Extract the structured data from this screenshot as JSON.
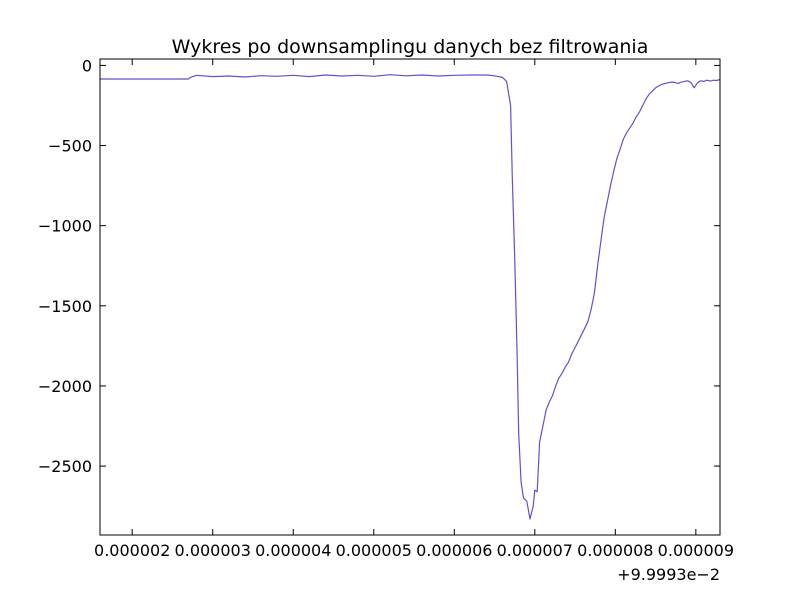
{
  "chart_data": {
    "type": "line",
    "title": "Wykres po downsamplingu danych bez filtrowania",
    "xlabel": "",
    "ylabel": "",
    "x_offset_label": "+9.9993e−2",
    "xlim": [
      1.6e-06,
      9.3e-06
    ],
    "ylim": [
      -2930,
      40
    ],
    "grid": false,
    "x_ticks": [
      {
        "value": 2e-06,
        "label": "0.000002"
      },
      {
        "value": 3e-06,
        "label": "0.000003"
      },
      {
        "value": 4e-06,
        "label": "0.000004"
      },
      {
        "value": 5e-06,
        "label": "0.000005"
      },
      {
        "value": 6e-06,
        "label": "0.000006"
      },
      {
        "value": 7e-06,
        "label": "0.000007"
      },
      {
        "value": 8e-06,
        "label": "0.000008"
      },
      {
        "value": 9e-06,
        "label": "0.000009"
      }
    ],
    "y_ticks": [
      {
        "value": 0,
        "label": "0"
      },
      {
        "value": -500,
        "label": "−500"
      },
      {
        "value": -1000,
        "label": "−1000"
      },
      {
        "value": -1500,
        "label": "−1500"
      },
      {
        "value": -2000,
        "label": "−2000"
      },
      {
        "value": -2500,
        "label": "−2500"
      }
    ],
    "series": [
      {
        "color": "#5b56c9",
        "x": [
          1.6e-06,
          2.7e-06,
          2.72e-06,
          2.8e-06,
          3e-06,
          3.2e-06,
          3.4e-06,
          3.6e-06,
          3.8e-06,
          4e-06,
          4.2e-06,
          4.4e-06,
          4.6e-06,
          4.8e-06,
          5e-06,
          5.2e-06,
          5.4e-06,
          5.6e-06,
          5.8e-06,
          6e-06,
          6.2e-06,
          6.4e-06,
          6.5e-06,
          6.6e-06,
          6.65e-06,
          6.7e-06,
          6.72e-06,
          6.75e-06,
          6.78e-06,
          6.8e-06,
          6.83e-06,
          6.86e-06,
          6.9e-06,
          6.94e-06,
          6.98e-06,
          7e-06,
          7.03e-06,
          7.06e-06,
          7.1e-06,
          7.14e-06,
          7.18e-06,
          7.22e-06,
          7.26e-06,
          7.3e-06,
          7.34e-06,
          7.38e-06,
          7.42e-06,
          7.46e-06,
          7.5e-06,
          7.54e-06,
          7.58e-06,
          7.62e-06,
          7.66e-06,
          7.7e-06,
          7.74e-06,
          7.78e-06,
          7.82e-06,
          7.86e-06,
          7.9e-06,
          7.94e-06,
          7.98e-06,
          8.02e-06,
          8.06e-06,
          8.1e-06,
          8.14e-06,
          8.18e-06,
          8.22e-06,
          8.26e-06,
          8.3e-06,
          8.34e-06,
          8.38e-06,
          8.42e-06,
          8.46e-06,
          8.5e-06,
          8.54e-06,
          8.58e-06,
          8.62e-06,
          8.66e-06,
          8.7e-06,
          8.74e-06,
          8.78e-06,
          8.82e-06,
          8.86e-06,
          8.9e-06,
          8.94e-06,
          8.98e-06,
          9.02e-06,
          9.06e-06,
          9.1e-06,
          9.14e-06,
          9.18e-06,
          9.22e-06,
          9.26e-06,
          9.3e-06
        ],
        "y": [
          -85,
          -85,
          -75,
          -62,
          -70,
          -66,
          -72,
          -64,
          -68,
          -62,
          -70,
          -60,
          -66,
          -62,
          -68,
          -58,
          -65,
          -60,
          -66,
          -62,
          -60,
          -60,
          -65,
          -75,
          -100,
          -250,
          -700,
          -1200,
          -1800,
          -2300,
          -2600,
          -2700,
          -2720,
          -2830,
          -2750,
          -2650,
          -2660,
          -2350,
          -2250,
          -2150,
          -2100,
          -2060,
          -2000,
          -1950,
          -1920,
          -1880,
          -1850,
          -1800,
          -1760,
          -1720,
          -1680,
          -1640,
          -1600,
          -1520,
          -1420,
          -1250,
          -1100,
          -950,
          -850,
          -750,
          -660,
          -580,
          -520,
          -460,
          -420,
          -390,
          -360,
          -320,
          -290,
          -250,
          -210,
          -180,
          -160,
          -140,
          -128,
          -118,
          -112,
          -108,
          -104,
          -106,
          -112,
          -104,
          -100,
          -96,
          -108,
          -140,
          -108,
          -96,
          -100,
          -92,
          -98,
          -92,
          -94,
          -88
        ]
      }
    ]
  }
}
